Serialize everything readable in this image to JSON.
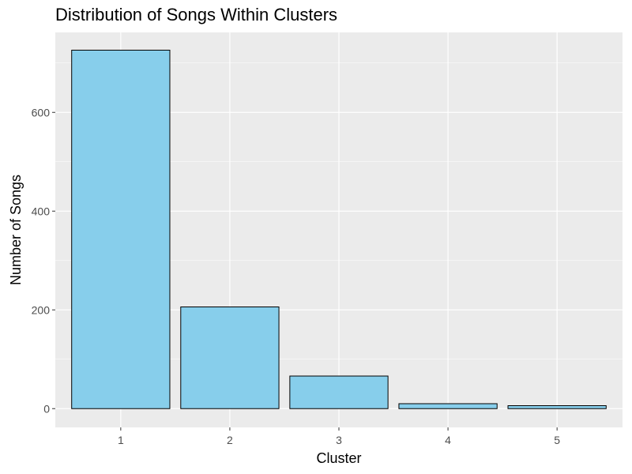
{
  "chart_data": {
    "type": "bar",
    "title": "Distribution of Songs Within Clusters",
    "xlabel": "Cluster",
    "ylabel": "Number of Songs",
    "categories": [
      "1",
      "2",
      "3",
      "4",
      "5"
    ],
    "values": [
      726,
      206,
      66,
      10,
      6
    ],
    "ylim": [
      -38,
      762
    ],
    "yticks": [
      0,
      200,
      400,
      600
    ],
    "grid": true,
    "legend": "none",
    "colors": {
      "bar_fill": "#87ceeb",
      "bar_stroke": "#000000",
      "panel_background": "#ebebeb",
      "grid": "#ffffff"
    }
  }
}
